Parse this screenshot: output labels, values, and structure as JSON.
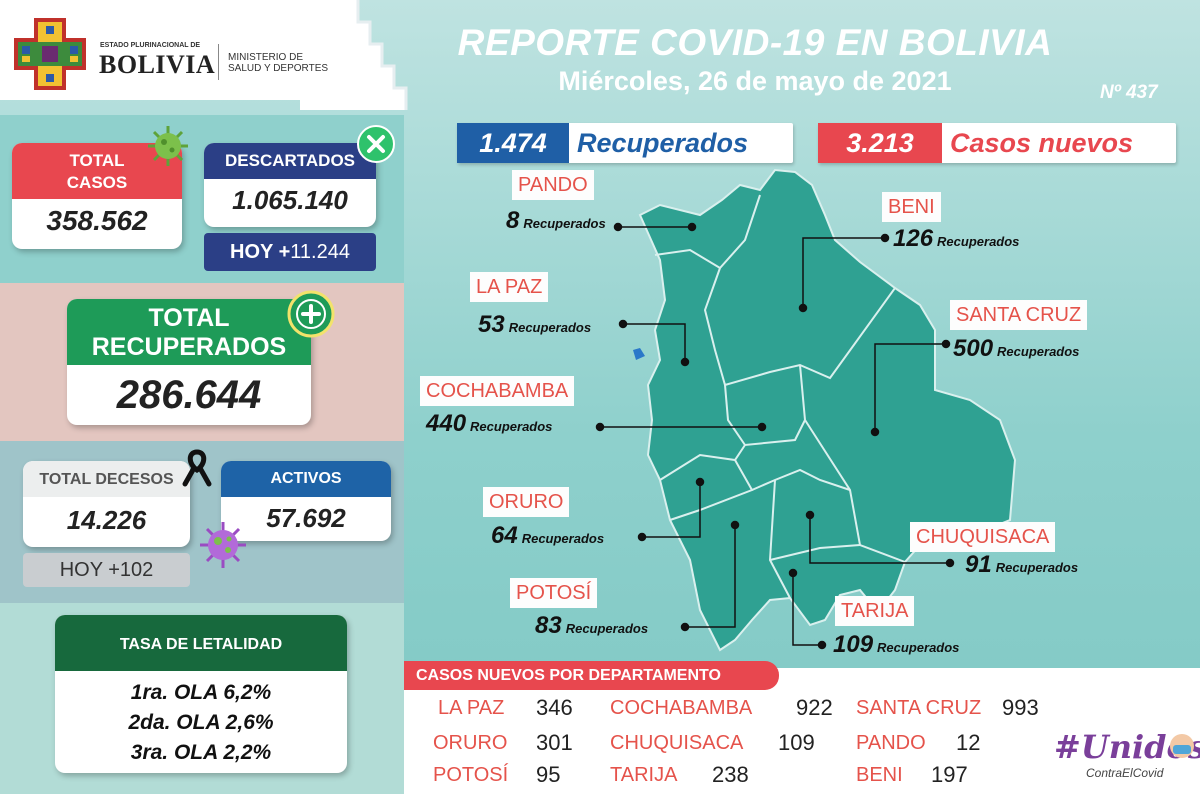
{
  "header": {
    "estado": "ESTADO PLURINACIONAL DE",
    "bolivia": "BOLIVIA",
    "ministerio_1": "MINISTERIO DE",
    "ministerio_2": "SALUD Y DEPORTES",
    "title": "REPORTE COVID-19 EN BOLIVIA",
    "date": "Miércoles, 26 de mayo de 2021",
    "report_number": "Nº 437"
  },
  "total_casos": {
    "label_1": "TOTAL",
    "label_2": "CASOS",
    "value": "358.562"
  },
  "descartados": {
    "label": "DESCARTADOS",
    "value": "1.065.140",
    "hoy_label": "HOY +",
    "hoy_value": "11.244"
  },
  "total_recuperados": {
    "label_1": "TOTAL",
    "label_2": "RECUPERADOS",
    "value": "286.644"
  },
  "total_decesos": {
    "label": "TOTAL DECESOS",
    "value": "14.226",
    "hoy": "HOY +102"
  },
  "activos": {
    "label": "ACTIVOS",
    "value": "57.692"
  },
  "letalidad": {
    "title": "TASA DE LETALIDAD",
    "olas": [
      "1ra. OLA 6,2%",
      "2da. OLA 2,6%",
      "3ra. OLA 2,2%"
    ]
  },
  "summary": {
    "recuperados_value": "1.474",
    "recuperados_label": "Recuperados",
    "casos_value": "3.213",
    "casos_label": "Casos nuevos"
  },
  "recuperados_word": "Recuperados",
  "departments_map": [
    {
      "name": "PANDO",
      "value": "8"
    },
    {
      "name": "BENI",
      "value": "126"
    },
    {
      "name": "LA PAZ",
      "value": "53"
    },
    {
      "name": "SANTA CRUZ",
      "value": "500"
    },
    {
      "name": "COCHABAMBA",
      "value": "440"
    },
    {
      "name": "ORURO",
      "value": "64"
    },
    {
      "name": "CHUQUISACA",
      "value": "91"
    },
    {
      "name": "POTOSÍ",
      "value": "83"
    },
    {
      "name": "TARIJA",
      "value": "109"
    }
  ],
  "casos_nuevos": {
    "title": "CASOS NUEVOS POR DEPARTAMENTO",
    "rows": [
      [
        {
          "name": "LA PAZ",
          "value": "346"
        },
        {
          "name": "COCHABAMBA",
          "value": "922"
        },
        {
          "name": "SANTA CRUZ",
          "value": "993"
        }
      ],
      [
        {
          "name": "ORURO",
          "value": "301"
        },
        {
          "name": "CHUQUISACA",
          "value": "109"
        },
        {
          "name": "PANDO",
          "value": "12"
        }
      ],
      [
        {
          "name": "POTOSÍ",
          "value": "95"
        },
        {
          "name": "TARIJA",
          "value": "238"
        },
        {
          "name": "BENI",
          "value": "197"
        }
      ]
    ]
  },
  "campaign": {
    "hashtag": "#Unidos",
    "sub": "ContraElCovid"
  },
  "colors": {
    "red": "#e8474f",
    "navy": "#2b3f86",
    "green": "#1e9b58",
    "blue": "#1e63a7",
    "map": "#2fa192"
  }
}
